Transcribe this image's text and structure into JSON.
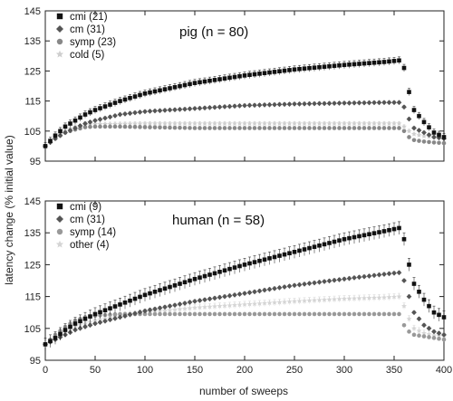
{
  "chart_data": {
    "type": "scatter",
    "ylabel": "latency change (% initial value)",
    "xlabel": "number of sweeps",
    "xlim": [
      0,
      400
    ],
    "xticks": [
      0,
      50,
      100,
      150,
      200,
      250,
      300,
      350,
      400
    ],
    "panels": [
      {
        "title": "pig (n = 80)",
        "ylim": [
          95,
          145
        ],
        "yticks": [
          95,
          105,
          115,
          125,
          135,
          145
        ],
        "series": [
          {
            "name": "cmi (21)",
            "marker": "square",
            "color": "#111111",
            "sd": 1.2,
            "x": [
              0,
              10,
              20,
              30,
              40,
              50,
              75,
              100,
              150,
              200,
              250,
              300,
              340,
              355,
              360,
              365,
              370,
              380,
              390,
              400
            ],
            "y": [
              100,
              103.5,
              106.5,
              108.5,
              110.5,
              112,
              115,
              117.5,
              121,
              123.5,
              125.5,
              127,
              128,
              128.5,
              126,
              118,
              112,
              108,
              104.5,
              103
            ]
          },
          {
            "name": "cm (31)",
            "marker": "diamond",
            "color": "#555555",
            "sd": 0.5,
            "x": [
              0,
              10,
              20,
              30,
              40,
              50,
              75,
              100,
              150,
              200,
              250,
              300,
              340,
              355,
              360,
              365,
              370,
              380,
              390,
              400
            ],
            "y": [
              100,
              102.5,
              104.5,
              106,
              107.5,
              108.5,
              110.5,
              111.5,
              112.5,
              113.5,
              114,
              114.3,
              114.5,
              114.5,
              113,
              109,
              106,
              104.5,
              103,
              102.5
            ]
          },
          {
            "name": "symp (23)",
            "marker": "circle",
            "color": "#888888",
            "sd": 0.4,
            "x": [
              0,
              10,
              20,
              30,
              40,
              50,
              75,
              100,
              150,
              200,
              250,
              300,
              340,
              355,
              360,
              365,
              370,
              380,
              390,
              400
            ],
            "y": [
              100,
              102.5,
              104.5,
              105.5,
              106.3,
              106.5,
              106.5,
              106.3,
              106,
              106,
              106,
              106,
              106,
              106,
              105,
              103,
              102,
              101.5,
              101.2,
              101
            ]
          },
          {
            "name": "cold (5)",
            "marker": "star",
            "color": "#cfcfcf",
            "sd": 0.6,
            "x": [
              0,
              10,
              20,
              30,
              40,
              50,
              75,
              100,
              150,
              200,
              250,
              300,
              340,
              355,
              360,
              365,
              370,
              380,
              390,
              400
            ],
            "y": [
              100,
              103,
              105,
              106.5,
              107,
              107.3,
              107.4,
              107.5,
              107.5,
              107.5,
              107.5,
              107.5,
              107.5,
              107.5,
              106.5,
              105,
              104,
              103.3,
              103,
              103
            ]
          }
        ]
      },
      {
        "title": "human (n = 58)",
        "ylim": [
          95,
          145
        ],
        "yticks": [
          95,
          105,
          115,
          125,
          135,
          145
        ],
        "series": [
          {
            "name": "cmi (9)",
            "marker": "square",
            "color": "#111111",
            "sd": 2,
            "x": [
              0,
              10,
              20,
              30,
              40,
              50,
              75,
              100,
              150,
              200,
              250,
              300,
              340,
              355,
              360,
              365,
              370,
              380,
              390,
              400
            ],
            "y": [
              100,
              102,
              104.5,
              106.5,
              108,
              109.5,
              112.5,
              115.5,
              120.5,
              125,
              129,
              133,
              135.5,
              136.5,
              133,
              125,
              119,
              114,
              110,
              108.5
            ]
          },
          {
            "name": "cm (31)",
            "marker": "diamond",
            "color": "#555555",
            "sd": 0.5,
            "x": [
              0,
              10,
              20,
              30,
              40,
              50,
              75,
              100,
              150,
              200,
              250,
              300,
              340,
              355,
              360,
              365,
              370,
              380,
              390,
              400
            ],
            "y": [
              100,
              101.5,
              103,
              104.5,
              105.5,
              106.5,
              108.5,
              110.5,
              113.5,
              116,
              118.5,
              120.5,
              122,
              122.5,
              120,
              115,
              110,
              106,
              104,
              103
            ]
          },
          {
            "name": "symp (14)",
            "marker": "circle",
            "color": "#999999",
            "sd": 0.4,
            "x": [
              0,
              10,
              20,
              30,
              40,
              50,
              75,
              100,
              150,
              200,
              250,
              300,
              340,
              355,
              360,
              365,
              370,
              380,
              390,
              400
            ],
            "y": [
              100,
              103,
              105.5,
              107.5,
              108.5,
              109,
              109.5,
              109.5,
              109.5,
              109.5,
              109.5,
              109.5,
              109.5,
              109.5,
              106,
              104,
              103,
              102.5,
              102,
              101.5
            ]
          },
          {
            "name": "other (4)",
            "marker": "star",
            "color": "#d5d5d5",
            "sd": 1,
            "x": [
              0,
              10,
              20,
              30,
              40,
              50,
              75,
              100,
              150,
              200,
              250,
              300,
              340,
              355,
              360,
              365,
              370,
              380,
              390,
              400
            ],
            "y": [
              100,
              102,
              104,
              105.5,
              106.5,
              107.5,
              109,
              110,
              111.5,
              112.5,
              113.5,
              114.3,
              114.7,
              115,
              112,
              108,
              105,
              103.5,
              102.8,
              102.5
            ]
          }
        ]
      }
    ]
  }
}
